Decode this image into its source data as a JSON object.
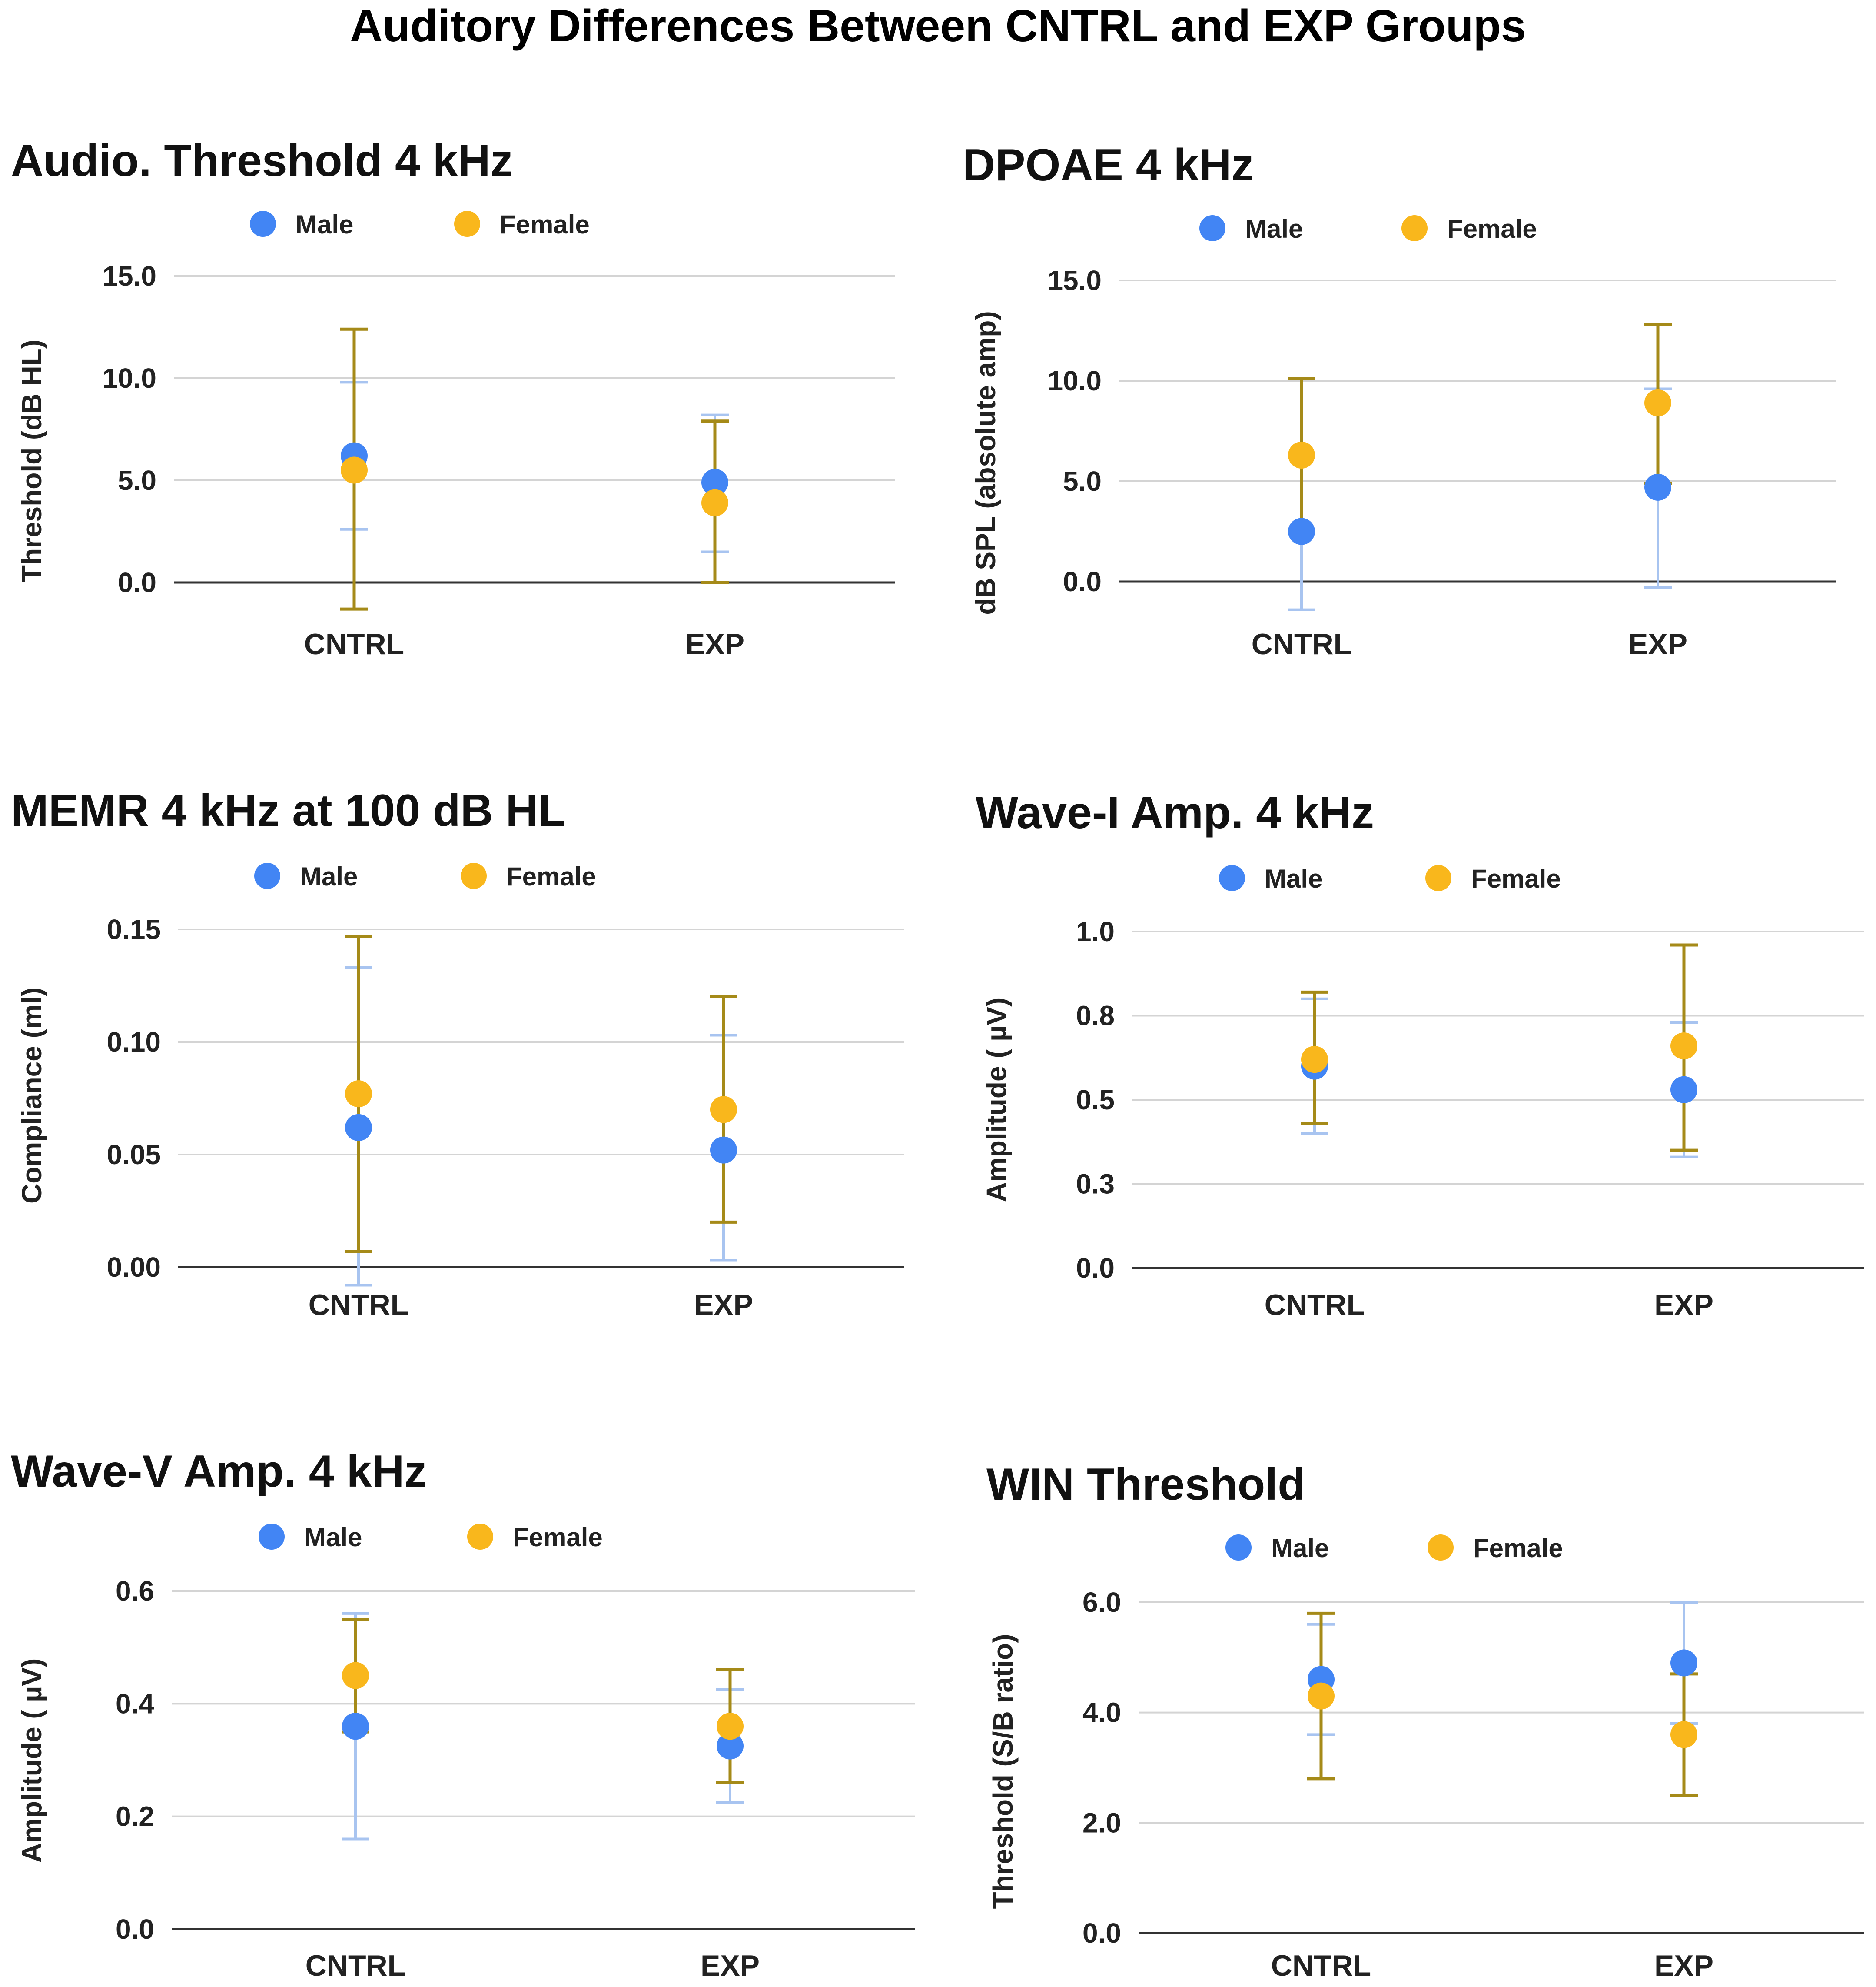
{
  "title": "Auditory Differences Between CNTRL and EXP Groups",
  "colors": {
    "male": "#4285f4",
    "female": "#f9b71c",
    "male_error": "#a8c4f0",
    "female_error": "#a58a18"
  },
  "chart_data": [
    {
      "type": "scatter",
      "title": "Audio. Threshold 4 kHz",
      "ylabel": "Threshold (dB HL)",
      "categories": [
        "CNTRL",
        "EXP"
      ],
      "yticks": [
        "0.0",
        "5.0",
        "10.0",
        "15.0"
      ],
      "tick_values": [
        0,
        5,
        10,
        15
      ],
      "ylim": [
        0,
        15
      ],
      "series": [
        {
          "name": "Male",
          "values": [
            6.2,
            4.9
          ],
          "err_low": [
            2.6,
            1.5
          ],
          "err_high": [
            9.8,
            8.2
          ]
        },
        {
          "name": "Female",
          "values": [
            5.5,
            3.9
          ],
          "err_low": [
            -1.3,
            0.0
          ],
          "err_high": [
            12.4,
            7.9
          ]
        }
      ]
    },
    {
      "type": "scatter",
      "title": "DPOAE 4 kHz",
      "ylabel": "dB SPL (absolute amp)",
      "categories": [
        "CNTRL",
        "EXP"
      ],
      "yticks": [
        "0.0",
        "5.0",
        "10.0",
        "15.0"
      ],
      "tick_values": [
        0,
        5,
        10,
        15
      ],
      "ylim": [
        0,
        15
      ],
      "series": [
        {
          "name": "Male",
          "values": [
            2.5,
            4.7
          ],
          "err_low": [
            -1.4,
            -0.3
          ],
          "err_high": [
            6.4,
            9.6
          ]
        },
        {
          "name": "Female",
          "values": [
            6.3,
            8.9
          ],
          "err_low": [
            2.5,
            4.9
          ],
          "err_high": [
            10.1,
            12.8
          ]
        }
      ]
    },
    {
      "type": "scatter",
      "title": "MEMR 4 kHz at 100 dB HL",
      "ylabel": "Compliance (ml)",
      "categories": [
        "CNTRL",
        "EXP"
      ],
      "yticks": [
        "0.00",
        "0.05",
        "0.10",
        "0.15"
      ],
      "tick_values": [
        0,
        0.05,
        0.1,
        0.15
      ],
      "ylim": [
        0,
        0.15
      ],
      "series": [
        {
          "name": "Male",
          "values": [
            0.062,
            0.052
          ],
          "err_low": [
            -0.008,
            0.003
          ],
          "err_high": [
            0.133,
            0.103
          ]
        },
        {
          "name": "Female",
          "values": [
            0.077,
            0.07
          ],
          "err_low": [
            0.007,
            0.02
          ],
          "err_high": [
            0.147,
            0.12
          ]
        }
      ]
    },
    {
      "type": "scatter",
      "title": "Wave-I Amp. 4 kHz",
      "ylabel": "Amplitude ( µV)",
      "categories": [
        "CNTRL",
        "EXP"
      ],
      "yticks": [
        "0.0",
        "0.3",
        "0.5",
        "0.8",
        "1.0"
      ],
      "tick_values": [
        0,
        0.25,
        0.5,
        0.75,
        1.0
      ],
      "ylim": [
        0,
        1.0
      ],
      "series": [
        {
          "name": "Male",
          "values": [
            0.6,
            0.53
          ],
          "err_low": [
            0.4,
            0.33
          ],
          "err_high": [
            0.8,
            0.73
          ]
        },
        {
          "name": "Female",
          "values": [
            0.62,
            0.66
          ],
          "err_low": [
            0.43,
            0.35
          ],
          "err_high": [
            0.82,
            0.96
          ]
        }
      ]
    },
    {
      "type": "scatter",
      "title": "Wave-V Amp. 4 kHz",
      "ylabel": "Amplitude ( µV)",
      "categories": [
        "CNTRL",
        "EXP"
      ],
      "yticks": [
        "0.0",
        "0.2",
        "0.4",
        "0.6"
      ],
      "tick_values": [
        0,
        0.2,
        0.4,
        0.6
      ],
      "ylim": [
        0,
        0.6
      ],
      "series": [
        {
          "name": "Male",
          "values": [
            0.36,
            0.325
          ],
          "err_low": [
            0.16,
            0.225
          ],
          "err_high": [
            0.56,
            0.425
          ]
        },
        {
          "name": "Female",
          "values": [
            0.45,
            0.36
          ],
          "err_low": [
            0.35,
            0.26
          ],
          "err_high": [
            0.55,
            0.46
          ]
        }
      ]
    },
    {
      "type": "scatter",
      "title": "WIN Threshold",
      "ylabel": "Threshold (S/B ratio)",
      "categories": [
        "CNTRL",
        "EXP"
      ],
      "yticks": [
        "0.0",
        "2.0",
        "4.0",
        "6.0"
      ],
      "tick_values": [
        0,
        2,
        4,
        6
      ],
      "ylim": [
        0,
        6
      ],
      "series": [
        {
          "name": "Male",
          "values": [
            4.6,
            4.9
          ],
          "err_low": [
            3.6,
            3.8
          ],
          "err_high": [
            5.6,
            6.0
          ]
        },
        {
          "name": "Female",
          "values": [
            4.3,
            3.6
          ],
          "err_low": [
            2.8,
            2.5
          ],
          "err_high": [
            5.8,
            4.7
          ]
        }
      ]
    }
  ]
}
